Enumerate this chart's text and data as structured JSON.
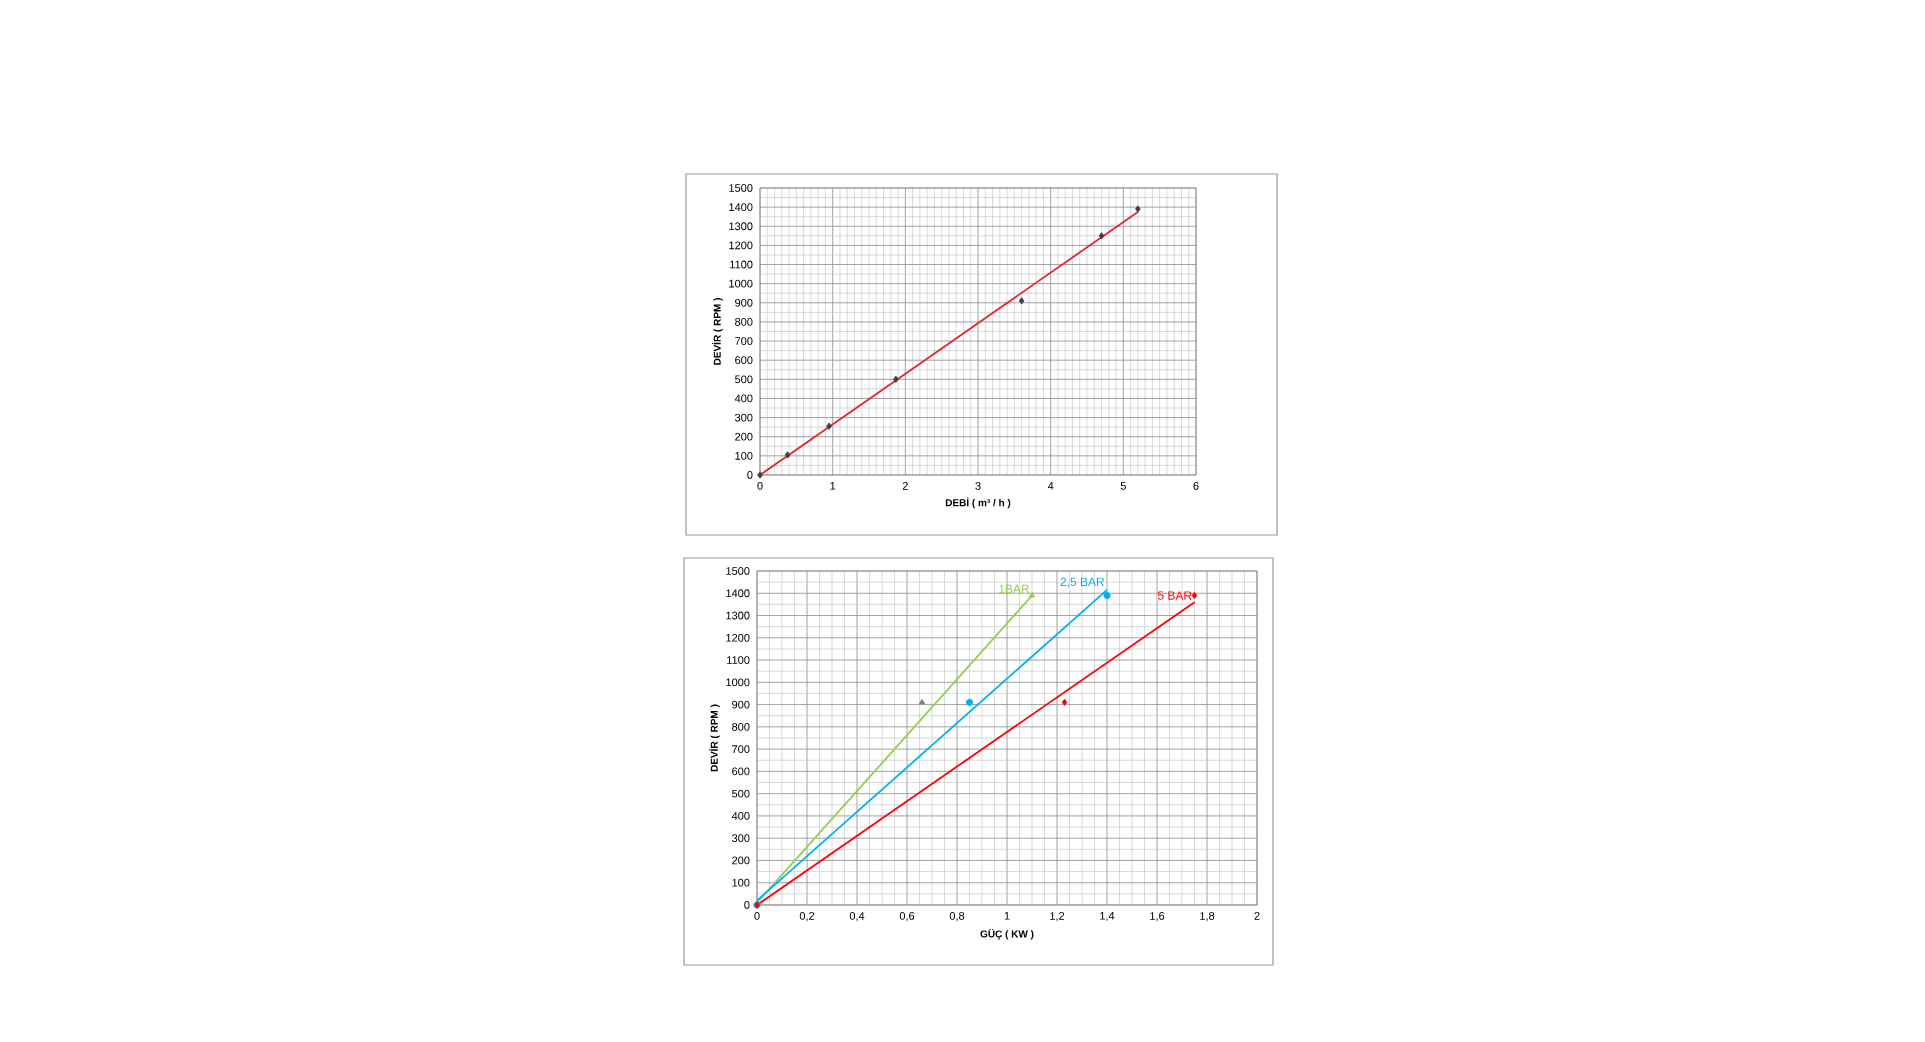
{
  "chart_data": [
    {
      "type": "scatter",
      "xlabel": "DEBİ ( m³ / h )",
      "ylabel": "DEVİR ( RPM )",
      "xlim": [
        0,
        6
      ],
      "ylim": [
        0,
        1500
      ],
      "xticks": [
        0,
        1,
        2,
        3,
        4,
        5,
        6
      ],
      "yticks": [
        0,
        100,
        200,
        300,
        400,
        500,
        600,
        700,
        800,
        900,
        1000,
        1100,
        1200,
        1300,
        1400,
        1500
      ],
      "grid": true,
      "series": [
        {
          "color": "#404040",
          "marker": "diamond",
          "x": [
            0,
            0.38,
            0.95,
            1.87,
            3.6,
            4.7,
            5.2
          ],
          "values": [
            0,
            105,
            255,
            500,
            910,
            1250,
            1390
          ]
        },
        {
          "type": "line",
          "color": "#e0282e",
          "line_style": "solid",
          "x": [
            0,
            5.2
          ],
          "values": [
            0,
            1375
          ]
        }
      ]
    },
    {
      "type": "scatter",
      "xlabel": "GÜÇ ( KW )",
      "ylabel": "DEVİR ( RPM )",
      "xlim": [
        0,
        2
      ],
      "ylim": [
        0,
        1500
      ],
      "xticks": [
        0,
        {
          "value": 0.2,
          "label": "0,2"
        },
        {
          "value": 0.4,
          "label": "0,4"
        },
        {
          "value": 0.6,
          "label": "0,6"
        },
        {
          "value": 0.8,
          "label": "0,8"
        },
        1,
        {
          "value": 1.2,
          "label": "1,2"
        },
        {
          "value": 1.4,
          "label": "1,4"
        },
        {
          "value": 1.6,
          "label": "1,6"
        },
        {
          "value": 1.8,
          "label": "1,8"
        },
        2
      ],
      "yticks": [
        0,
        100,
        200,
        300,
        400,
        500,
        600,
        700,
        800,
        900,
        1000,
        1100,
        1200,
        1300,
        1400,
        1500
      ],
      "grid": true,
      "series": [
        {
          "type": "line",
          "name": "1BAR",
          "color": "#92d050",
          "line_style": "solid",
          "x": [
            0,
            1.1
          ],
          "values": [
            10,
            1390
          ]
        },
        {
          "type": "line",
          "name": "2,5 BAR",
          "color": "#00b0f0",
          "line_style": "solid",
          "x": [
            0,
            1.4
          ],
          "values": [
            20,
            1415
          ]
        },
        {
          "type": "line",
          "name": "5 BAR",
          "color": "#ff0000",
          "line_style": "solid",
          "x": [
            0,
            1.75
          ],
          "values": [
            0,
            1360
          ]
        },
        {
          "marker": "triangle",
          "colors": [
            "#92d050",
            "#7f7f7f",
            "#92d050"
          ],
          "x": [
            0,
            0.66,
            1.1
          ],
          "values": [
            0,
            910,
            1390
          ]
        },
        {
          "marker": "circle",
          "color": "#00b0f0",
          "x": [
            0,
            0.85,
            1.4
          ],
          "values": [
            0,
            910,
            1390
          ]
        },
        {
          "marker": "diamond",
          "color": "#ff0000",
          "x": [
            0,
            1.23,
            1.75
          ],
          "values": [
            0,
            910,
            1390
          ]
        }
      ]
    }
  ]
}
